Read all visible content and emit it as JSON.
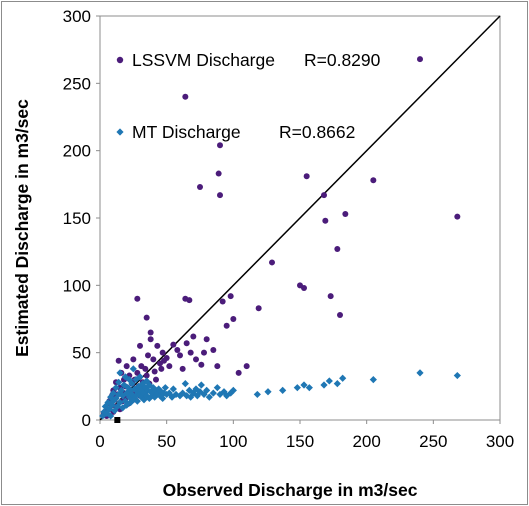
{
  "chart_data": {
    "type": "scatter",
    "xlabel": "Observed Discharge in m3/sec",
    "ylabel": "Estimated Discharge in m3/sec",
    "xlim": [
      0,
      300
    ],
    "ylim": [
      0,
      300
    ],
    "xticks": [
      0,
      50,
      100,
      150,
      200,
      250,
      300
    ],
    "yticks": [
      0,
      50,
      100,
      150,
      200,
      250,
      300
    ],
    "grid": false,
    "legend_position": "top-left",
    "reference_line": {
      "from": [
        0,
        0
      ],
      "to": [
        300,
        300
      ],
      "color": "#000000"
    },
    "series": [
      {
        "name": "LSSVM Discharge",
        "legend_label": "LSSVM Discharge",
        "r_label": "R=0.8290",
        "color": "#4b1c7a",
        "marker": "circle",
        "points": [
          [
            3,
            5
          ],
          [
            5,
            3
          ],
          [
            6,
            8
          ],
          [
            7,
            14
          ],
          [
            8,
            12
          ],
          [
            9,
            18
          ],
          [
            10,
            6
          ],
          [
            10,
            22
          ],
          [
            11,
            15
          ],
          [
            12,
            10
          ],
          [
            12,
            28
          ],
          [
            13,
            19
          ],
          [
            14,
            44
          ],
          [
            15,
            8
          ],
          [
            15,
            24
          ],
          [
            16,
            35
          ],
          [
            17,
            14
          ],
          [
            18,
            20
          ],
          [
            18,
            30
          ],
          [
            19,
            25
          ],
          [
            20,
            40
          ],
          [
            20,
            17
          ],
          [
            21,
            12
          ],
          [
            22,
            33
          ],
          [
            23,
            22
          ],
          [
            24,
            27
          ],
          [
            25,
            15
          ],
          [
            25,
            45
          ],
          [
            26,
            30
          ],
          [
            27,
            20
          ],
          [
            28,
            35
          ],
          [
            28,
            90
          ],
          [
            29,
            25
          ],
          [
            30,
            18
          ],
          [
            30,
            55
          ],
          [
            31,
            40
          ],
          [
            32,
            28
          ],
          [
            33,
            22
          ],
          [
            34,
            38
          ],
          [
            35,
            33
          ],
          [
            35,
            76
          ],
          [
            36,
            48
          ],
          [
            37,
            27
          ],
          [
            38,
            60
          ],
          [
            38,
            65
          ],
          [
            40,
            45
          ],
          [
            41,
            36
          ],
          [
            42,
            30
          ],
          [
            43,
            55
          ],
          [
            45,
            42
          ],
          [
            46,
            38
          ],
          [
            47,
            50
          ],
          [
            48,
            44
          ],
          [
            50,
            46
          ],
          [
            52,
            40
          ],
          [
            55,
            56
          ],
          [
            58,
            52
          ],
          [
            60,
            48
          ],
          [
            62,
            38
          ],
          [
            64,
            90
          ],
          [
            64,
            240
          ],
          [
            65,
            57
          ],
          [
            67,
            89
          ],
          [
            68,
            50
          ],
          [
            70,
            62
          ],
          [
            72,
            45
          ],
          [
            75,
            173
          ],
          [
            76,
            41
          ],
          [
            78,
            50
          ],
          [
            80,
            60
          ],
          [
            85,
            52
          ],
          [
            88,
            40
          ],
          [
            89,
            183
          ],
          [
            90,
            167
          ],
          [
            90,
            204
          ],
          [
            92,
            88
          ],
          [
            95,
            70
          ],
          [
            98,
            92
          ],
          [
            100,
            75
          ],
          [
            104,
            35
          ],
          [
            110,
            40
          ],
          [
            119,
            83
          ],
          [
            129,
            117
          ],
          [
            150,
            100
          ],
          [
            153,
            98
          ],
          [
            155,
            181
          ],
          [
            168,
            167
          ],
          [
            169,
            148
          ],
          [
            173,
            92
          ],
          [
            178,
            127
          ],
          [
            180,
            78
          ],
          [
            184,
            153
          ],
          [
            205,
            178
          ],
          [
            240,
            268
          ],
          [
            268,
            151
          ]
        ]
      },
      {
        "name": "MT Discharge",
        "legend_label": "MT Discharge",
        "r_label": "R=0.8662",
        "color": "#1f77b4",
        "marker": "diamond",
        "points": [
          [
            2,
            3
          ],
          [
            3,
            6
          ],
          [
            4,
            10
          ],
          [
            5,
            5
          ],
          [
            6,
            13
          ],
          [
            7,
            8
          ],
          [
            8,
            17
          ],
          [
            8,
            3
          ],
          [
            9,
            11
          ],
          [
            10,
            14
          ],
          [
            10,
            20
          ],
          [
            11,
            7
          ],
          [
            12,
            16
          ],
          [
            12,
            24
          ],
          [
            13,
            10
          ],
          [
            14,
            19
          ],
          [
            14,
            28
          ],
          [
            15,
            13
          ],
          [
            15,
            35
          ],
          [
            16,
            22
          ],
          [
            17,
            9
          ],
          [
            17,
            18
          ],
          [
            18,
            26
          ],
          [
            19,
            14
          ],
          [
            19,
            32
          ],
          [
            20,
            20
          ],
          [
            20,
            11
          ],
          [
            21,
            24
          ],
          [
            22,
            17
          ],
          [
            22,
            30
          ],
          [
            23,
            13
          ],
          [
            23,
            22
          ],
          [
            24,
            19
          ],
          [
            24,
            27
          ],
          [
            25,
            15
          ],
          [
            25,
            38
          ],
          [
            26,
            23
          ],
          [
            27,
            18
          ],
          [
            27,
            30
          ],
          [
            28,
            21
          ],
          [
            28,
            14
          ],
          [
            29,
            25
          ],
          [
            30,
            19
          ],
          [
            30,
            32
          ],
          [
            31,
            17
          ],
          [
            31,
            23
          ],
          [
            32,
            27
          ],
          [
            33,
            20
          ],
          [
            33,
            15
          ],
          [
            34,
            24
          ],
          [
            35,
            18
          ],
          [
            35,
            29
          ],
          [
            36,
            22
          ],
          [
            37,
            16
          ],
          [
            37,
            26
          ],
          [
            38,
            21
          ],
          [
            39,
            18
          ],
          [
            40,
            24
          ],
          [
            40,
            20
          ],
          [
            41,
            17
          ],
          [
            42,
            22
          ],
          [
            43,
            19
          ],
          [
            44,
            23
          ],
          [
            45,
            18
          ],
          [
            46,
            21
          ],
          [
            47,
            16
          ],
          [
            48,
            20
          ],
          [
            49,
            24
          ],
          [
            50,
            19
          ],
          [
            52,
            20
          ],
          [
            54,
            17
          ],
          [
            55,
            23
          ],
          [
            57,
            19
          ],
          [
            60,
            18
          ],
          [
            62,
            20
          ],
          [
            64,
            27
          ],
          [
            65,
            18
          ],
          [
            67,
            22
          ],
          [
            68,
            17
          ],
          [
            70,
            20
          ],
          [
            72,
            23
          ],
          [
            73,
            18
          ],
          [
            75,
            21
          ],
          [
            76,
            26
          ],
          [
            78,
            19
          ],
          [
            80,
            22
          ],
          [
            82,
            17
          ],
          [
            85,
            20
          ],
          [
            88,
            24
          ],
          [
            90,
            19
          ],
          [
            93,
            21
          ],
          [
            95,
            18
          ],
          [
            98,
            20
          ],
          [
            100,
            22
          ],
          [
            118,
            19
          ],
          [
            126,
            21
          ],
          [
            137,
            22
          ],
          [
            148,
            24
          ],
          [
            153,
            26
          ],
          [
            157,
            24
          ],
          [
            168,
            26
          ],
          [
            172,
            29
          ],
          [
            178,
            27
          ],
          [
            182,
            31
          ],
          [
            205,
            30
          ],
          [
            240,
            35
          ],
          [
            268,
            33
          ]
        ]
      }
    ]
  },
  "marker_at_origin": {
    "x": 13,
    "y": 0,
    "color": "#000000"
  }
}
